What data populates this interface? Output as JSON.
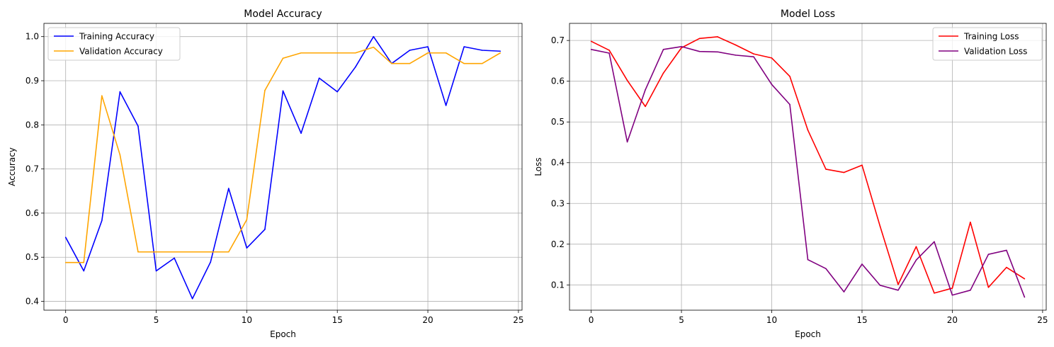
{
  "chart_data": [
    {
      "type": "line",
      "title": "Model Accuracy",
      "xlabel": "Epoch",
      "ylabel": "Accuracy",
      "xlim": [
        -1.2,
        25.2
      ],
      "ylim": [
        0.38,
        1.03
      ],
      "xticks": [
        0,
        5,
        10,
        15,
        20,
        25
      ],
      "yticks": [
        0.4,
        0.5,
        0.6,
        0.7,
        0.8,
        0.9,
        1.0
      ],
      "ytick_labels": [
        "0.4",
        "0.5",
        "0.6",
        "0.7",
        "0.8",
        "0.9",
        "1.0"
      ],
      "grid": true,
      "legend_position": "top-left",
      "x": [
        0,
        1,
        2,
        3,
        4,
        5,
        6,
        7,
        8,
        9,
        10,
        11,
        12,
        13,
        14,
        15,
        16,
        17,
        18,
        19,
        20,
        21,
        22,
        23,
        24
      ],
      "series": [
        {
          "name": "Training Accuracy",
          "color": "#0000ff",
          "values": [
            0.545,
            0.469,
            0.583,
            0.875,
            0.797,
            0.469,
            0.498,
            0.406,
            0.489,
            0.656,
            0.521,
            0.563,
            0.877,
            0.781,
            0.906,
            0.875,
            0.931,
            1.0,
            0.939,
            0.969,
            0.977,
            0.844,
            0.977,
            0.969,
            0.967
          ]
        },
        {
          "name": "Validation Accuracy",
          "color": "#ffa500",
          "values": [
            0.488,
            0.488,
            0.866,
            0.732,
            0.512,
            0.512,
            0.512,
            0.512,
            0.512,
            0.512,
            0.585,
            0.878,
            0.951,
            0.963,
            0.963,
            0.963,
            0.963,
            0.976,
            0.939,
            0.939,
            0.963,
            0.963,
            0.939,
            0.939,
            0.963
          ]
        }
      ]
    },
    {
      "type": "line",
      "title": "Model Loss",
      "xlabel": "Epoch",
      "ylabel": "Loss",
      "xlim": [
        -1.2,
        25.2
      ],
      "ylim": [
        0.038,
        0.742
      ],
      "xticks": [
        0,
        5,
        10,
        15,
        20,
        25
      ],
      "yticks": [
        0.1,
        0.2,
        0.3,
        0.4,
        0.5,
        0.6,
        0.7
      ],
      "ytick_labels": [
        "0.1",
        "0.2",
        "0.3",
        "0.4",
        "0.5",
        "0.6",
        "0.7"
      ],
      "grid": true,
      "legend_position": "top-right",
      "x": [
        0,
        1,
        2,
        3,
        4,
        5,
        6,
        7,
        8,
        9,
        10,
        11,
        12,
        13,
        14,
        15,
        16,
        17,
        18,
        19,
        20,
        21,
        22,
        23,
        24
      ],
      "series": [
        {
          "name": "Training Loss",
          "color": "#ff0000",
          "values": [
            0.698,
            0.676,
            0.602,
            0.538,
            0.62,
            0.682,
            0.705,
            0.709,
            0.689,
            0.667,
            0.657,
            0.612,
            0.48,
            0.384,
            0.376,
            0.394,
            0.244,
            0.101,
            0.194,
            0.08,
            0.092,
            0.254,
            0.094,
            0.143,
            0.115
          ]
        },
        {
          "name": "Validation Loss",
          "color": "#800080",
          "values": [
            0.678,
            0.669,
            0.451,
            0.579,
            0.678,
            0.685,
            0.673,
            0.672,
            0.664,
            0.66,
            0.592,
            0.543,
            0.162,
            0.14,
            0.083,
            0.151,
            0.099,
            0.087,
            0.161,
            0.206,
            0.075,
            0.087,
            0.175,
            0.185,
            0.07
          ]
        }
      ]
    }
  ]
}
